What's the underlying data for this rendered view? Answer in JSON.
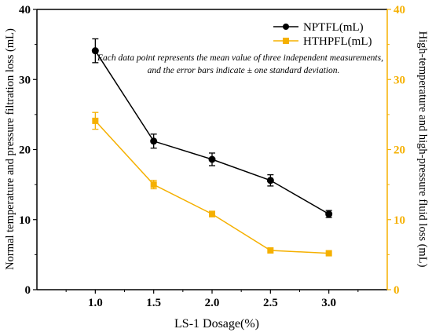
{
  "chart_data": {
    "type": "line",
    "xlabel": "LS-1 Dosage(%)",
    "ylabel_left": "Normal temperature and pressure filtration loss (mL)",
    "ylabel_right": "High-temperature and high-pressure fluid loss (mL)",
    "x": [
      1.0,
      1.5,
      2.0,
      2.5,
      3.0
    ],
    "x_tick_labels": [
      "1.0",
      "1.5",
      "2.0",
      "2.5",
      "3.0"
    ],
    "xlim": [
      0.5,
      3.5
    ],
    "ylim_left": [
      0,
      40
    ],
    "ylim_right": [
      0,
      40
    ],
    "y_ticks": [
      "0",
      "10",
      "20",
      "30",
      "40"
    ],
    "annotation": [
      "Each data point represents the mean value of three independent measurements,",
      "and the error bars indicate ± one standard deviation."
    ],
    "series": [
      {
        "name": "NPTFL(mL)",
        "axis": "left",
        "color": "#000000",
        "marker": "circle",
        "values": [
          34.1,
          21.2,
          18.6,
          15.6,
          10.8
        ],
        "errors": [
          1.7,
          1.0,
          0.9,
          0.8,
          0.5
        ]
      },
      {
        "name": "HTHPFL(mL)",
        "axis": "right",
        "color": "#f5b000",
        "marker": "square",
        "values": [
          24.1,
          15.0,
          10.8,
          5.6,
          5.2
        ],
        "errors": [
          1.2,
          0.6,
          0.4,
          0.0,
          0.0
        ]
      }
    ],
    "legend_position": "top-right",
    "grid": false
  }
}
